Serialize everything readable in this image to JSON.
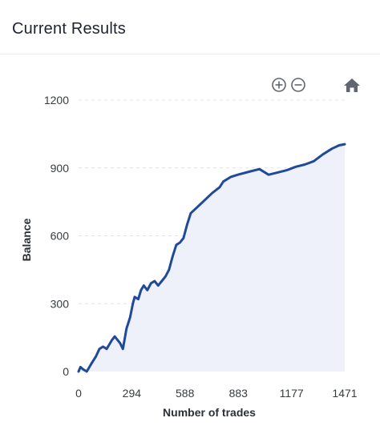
{
  "header": {
    "title": "Current Results"
  },
  "toolbar": {
    "zoom_in_icon": "zoom-in-icon",
    "zoom_out_icon": "zoom-out-icon",
    "home_icon": "home-icon"
  },
  "colors": {
    "line": "#1f4a9a",
    "area": "#eef0fa",
    "grid": "#e3e3e3",
    "icon": "#5f6672"
  },
  "chart_data": {
    "type": "area",
    "title": "",
    "xlabel": "Number of trades",
    "ylabel": "Balance",
    "xlim": [
      0,
      1471
    ],
    "ylim": [
      0,
      1200
    ],
    "xticks": [
      0,
      294,
      588,
      883,
      1177,
      1471
    ],
    "xtick_labels": [
      "0",
      "294",
      "588",
      "883",
      "1177",
      "1471"
    ],
    "yticks": [
      0,
      300,
      600,
      900,
      1200
    ],
    "ytick_labels": [
      "0",
      "300",
      "600",
      "900",
      "1200"
    ],
    "grid": "horizontal dashed",
    "legend": "none",
    "series": [
      {
        "x": [
          0,
          10,
          25,
          45,
          60,
          75,
          95,
          115,
          135,
          155,
          170,
          185,
          200,
          215,
          230,
          245,
          265,
          285,
          300,
          310,
          330,
          345,
          360,
          380,
          400,
          420,
          440,
          460,
          480,
          500,
          520,
          540,
          560,
          580,
          600,
          620,
          660,
          700,
          740,
          780,
          800,
          840,
          880,
          950,
          1000,
          1050,
          1100,
          1150,
          1200,
          1250,
          1300,
          1350,
          1400,
          1440,
          1471
        ],
        "y": [
          0,
          20,
          10,
          0,
          20,
          40,
          65,
          100,
          110,
          100,
          120,
          140,
          155,
          140,
          125,
          100,
          190,
          240,
          300,
          330,
          320,
          360,
          380,
          360,
          390,
          400,
          380,
          400,
          420,
          450,
          510,
          560,
          570,
          590,
          650,
          700,
          730,
          760,
          790,
          815,
          840,
          860,
          870,
          885,
          895,
          870,
          880,
          890,
          905,
          915,
          930,
          960,
          985,
          1000,
          1005
        ]
      }
    ]
  }
}
